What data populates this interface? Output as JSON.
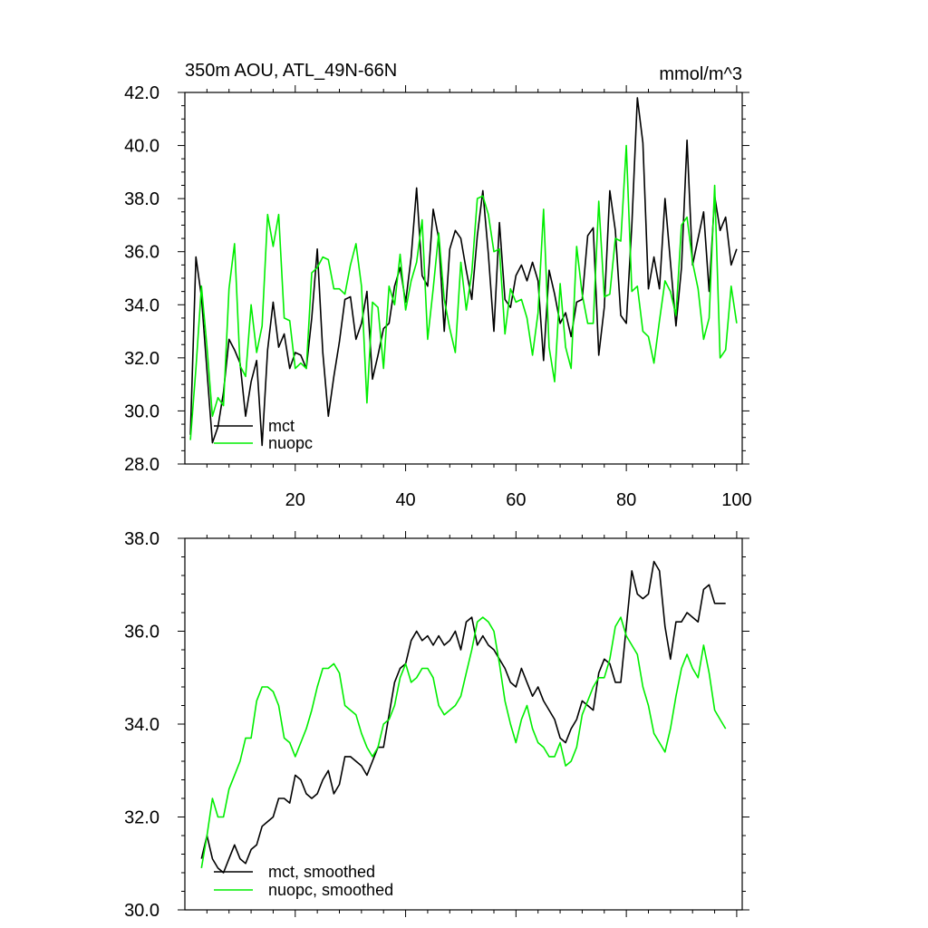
{
  "chart_data": [
    {
      "type": "line",
      "title": "350m AOU, ATL_49N-66N",
      "units": "mmol/m^3",
      "xlim": [
        0,
        101
      ],
      "ylim": [
        28,
        42
      ],
      "x_ticks": [
        20,
        40,
        60,
        80,
        100
      ],
      "y_ticks": [
        28.0,
        30.0,
        32.0,
        34.0,
        36.0,
        38.0,
        40.0,
        42.0
      ],
      "legend_position": "bottom-left",
      "series": [
        {
          "name": "mct",
          "color": "#000000",
          "x_start": 1,
          "values": [
            29.1,
            35.8,
            34.3,
            31.5,
            28.8,
            29.4,
            30.7,
            32.7,
            32.3,
            31.8,
            29.8,
            31.1,
            31.9,
            28.7,
            32.3,
            34.1,
            32.4,
            32.9,
            31.6,
            32.2,
            32.1,
            31.6,
            33.5,
            36.1,
            32.2,
            29.8,
            31.3,
            32.6,
            34.2,
            34.3,
            32.7,
            33.3,
            34.5,
            31.2,
            32.1,
            33.1,
            33.3,
            34.7,
            35.4,
            34.1,
            35.8,
            38.4,
            35.1,
            34.7,
            37.6,
            36.5,
            33.0,
            36.1,
            36.8,
            36.5,
            35.3,
            34.2,
            36.6,
            38.3,
            35.9,
            33.0,
            37.1,
            34.2,
            33.9,
            35.1,
            35.5,
            34.9,
            35.6,
            34.9,
            31.9,
            35.3,
            34.4,
            33.3,
            33.7,
            32.8,
            34.1,
            34.2,
            36.6,
            36.9,
            32.1,
            33.9,
            38.3,
            36.8,
            33.6,
            33.3,
            37.0,
            41.8,
            40.1,
            34.6,
            35.8,
            34.6,
            38.0,
            35.6,
            33.2,
            35.4,
            40.2,
            35.5,
            36.5,
            37.5,
            34.5,
            38.1,
            36.8,
            37.3,
            35.5,
            36.1
          ]
        },
        {
          "name": "nuopc",
          "color": "#00ee00",
          "x_start": 1,
          "values": [
            28.9,
            31.6,
            34.7,
            32.4,
            29.8,
            30.5,
            30.2,
            34.6,
            36.3,
            31.7,
            31.3,
            34.0,
            32.2,
            33.2,
            37.4,
            36.2,
            37.4,
            33.5,
            33.4,
            31.6,
            31.8,
            31.6,
            35.2,
            35.4,
            35.8,
            35.7,
            34.6,
            34.6,
            34.4,
            35.5,
            36.3,
            34.7,
            30.3,
            34.1,
            33.9,
            31.6,
            34.7,
            34.0,
            35.9,
            33.8,
            34.9,
            35.6,
            37.2,
            32.7,
            34.6,
            36.7,
            34.2,
            33.1,
            32.2,
            35.6,
            33.8,
            35.2,
            38.0,
            38.1,
            37.4,
            36.0,
            36.1,
            32.9,
            34.6,
            34.1,
            34.2,
            33.5,
            32.1,
            33.7,
            37.6,
            32.4,
            31.1,
            34.8,
            32.4,
            31.6,
            36.2,
            34.4,
            33.3,
            33.3,
            37.9,
            34.3,
            34.4,
            36.5,
            36.4,
            40.0,
            34.5,
            34.7,
            33.0,
            32.8,
            31.8,
            33.4,
            34.9,
            34.5,
            33.6,
            37.0,
            37.3,
            35.6,
            34.6,
            32.7,
            33.5,
            38.5,
            32.0,
            32.3,
            34.7,
            33.3
          ]
        }
      ]
    },
    {
      "type": "line",
      "title": "",
      "xlim": [
        0,
        101
      ],
      "ylim": [
        30,
        38
      ],
      "x_ticks": [
        20,
        40,
        60,
        80,
        100
      ],
      "y_ticks": [
        30.0,
        32.0,
        34.0,
        36.0,
        38.0
      ],
      "legend_position": "bottom-left",
      "series": [
        {
          "name": "mct, smoothed",
          "color": "#000000",
          "x_start": 3,
          "values": [
            31.1,
            31.6,
            31.1,
            30.9,
            30.8,
            31.1,
            31.4,
            31.1,
            31.0,
            31.3,
            31.4,
            31.8,
            31.9,
            32.0,
            32.4,
            32.4,
            32.3,
            32.9,
            32.8,
            32.5,
            32.4,
            32.5,
            32.8,
            33.0,
            32.5,
            32.7,
            33.3,
            33.3,
            33.2,
            33.1,
            32.9,
            33.2,
            33.5,
            33.5,
            34.2,
            34.9,
            35.2,
            35.3,
            35.8,
            36.0,
            35.8,
            35.9,
            35.7,
            35.9,
            35.7,
            35.8,
            36.0,
            35.6,
            36.2,
            36.3,
            35.7,
            35.9,
            35.7,
            35.6,
            35.4,
            35.2,
            34.9,
            34.8,
            35.2,
            34.9,
            34.6,
            34.8,
            34.5,
            34.3,
            34.1,
            33.7,
            33.6,
            33.9,
            34.1,
            34.5,
            34.4,
            34.3,
            35.1,
            35.4,
            35.3,
            34.9,
            34.9,
            36.1,
            37.3,
            36.8,
            36.7,
            36.8,
            37.5,
            37.3,
            36.1,
            35.4,
            36.2,
            36.2,
            36.4,
            36.3,
            36.2,
            36.9,
            37.0,
            36.6,
            36.6,
            36.6
          ]
        },
        {
          "name": "nuopc, smoothed",
          "color": "#00ee00",
          "x_start": 3,
          "values": [
            30.9,
            31.6,
            32.4,
            32.0,
            32.0,
            32.6,
            32.9,
            33.2,
            33.7,
            33.7,
            34.5,
            34.8,
            34.8,
            34.7,
            34.4,
            33.7,
            33.6,
            33.3,
            33.6,
            33.9,
            34.3,
            34.8,
            35.2,
            35.2,
            35.3,
            35.1,
            34.4,
            34.3,
            34.2,
            33.8,
            33.5,
            33.3,
            33.5,
            34.0,
            34.1,
            34.4,
            35.0,
            35.3,
            34.9,
            35.0,
            35.2,
            35.2,
            35.0,
            34.4,
            34.2,
            34.3,
            34.4,
            34.6,
            35.1,
            35.6,
            36.2,
            36.3,
            36.2,
            36.0,
            35.3,
            34.5,
            34.0,
            33.6,
            34.1,
            34.4,
            33.9,
            33.6,
            33.5,
            33.3,
            33.3,
            33.6,
            33.1,
            33.2,
            33.5,
            34.2,
            34.5,
            34.8,
            35.0,
            35.0,
            35.4,
            36.1,
            36.3,
            35.9,
            35.7,
            35.5,
            34.8,
            34.4,
            33.8,
            33.6,
            33.4,
            33.9,
            34.6,
            35.2,
            35.5,
            35.2,
            35.0,
            35.7,
            35.1,
            34.3,
            34.1,
            33.9
          ]
        }
      ]
    }
  ]
}
